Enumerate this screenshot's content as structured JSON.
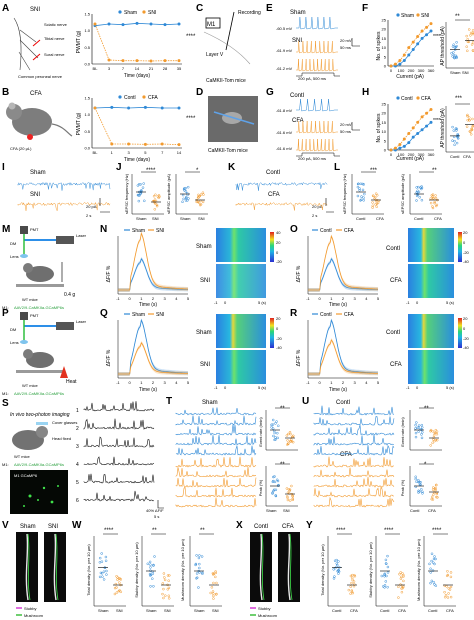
{
  "colors": {
    "sham": "#2f89d6",
    "injured": "#f29a2e",
    "heat_low": "#2b2fd0",
    "heat_mid": "#2ad67a",
    "heat_high": "#e01f1f"
  },
  "icons": [
    "neuron-schematic",
    "mouse-icon",
    "laser-icon",
    "pmt-icon",
    "lens-icon",
    "heat-icon",
    "cover-glass-icon",
    "head-fixed-icon"
  ],
  "panels": {
    "A": {
      "letter": "A",
      "model": "SNI",
      "tibial": "Tibial nerve",
      "common_peroneal": "Common peroneal nerve",
      "sural": "Sural nerve",
      "sciatic": "Sciatic nerve",
      "axis_y": "PWMT (g)",
      "axis_x": "Time (days)",
      "ticks_x": [
        "BL",
        "3",
        "7",
        "14",
        "21",
        "28",
        "35"
      ],
      "ticks_y": [
        "0.0",
        "0.5",
        "1.0",
        "1.5"
      ],
      "legend": [
        "Sham",
        "SNI"
      ],
      "sig": "****"
    },
    "B": {
      "letter": "B",
      "label": "CFA",
      "dose": "CFA (20 μL)",
      "axis_y": "PWMT (g)",
      "axis_x": "Time (days)",
      "ticks_x": [
        "BL",
        "1",
        "3",
        "5",
        "7",
        "14"
      ],
      "ticks_y": [
        "0.0",
        "0.5",
        "1.0",
        "1.5"
      ],
      "legend": [
        "Contl",
        "CFA"
      ],
      "sig": "****"
    },
    "C": {
      "letter": "C",
      "region": "M1",
      "recording": "Recording",
      "layer": "Layer V",
      "mice": "CaMKII-Tom mice"
    },
    "D": {
      "letter": "D",
      "mice": "CaMKII-Tom mice"
    },
    "E": {
      "letter": "E",
      "sham": "Sham",
      "sni": "SNI",
      "v1": "-60.5 mV",
      "v2": "-61.9 mV",
      "v3": "-61.2 mV",
      "scale_mv": "20 mV",
      "scale_ms": "50 ms",
      "step": "200 pA, 500 ms"
    },
    "F": {
      "letter": "F",
      "axis_y": "No. of spikes",
      "axis_x": "Current (pA)",
      "ticks_x": [
        "0",
        "100",
        "200",
        "300",
        "360"
      ],
      "ticks_y": [
        "0",
        "5",
        "10",
        "15",
        "20",
        "25"
      ],
      "legend": [
        "Sham",
        "SNI"
      ],
      "sig": "****",
      "axis_y2": "AP threshold (pA)",
      "ticks_y2": [
        "0",
        "50",
        "100",
        "150",
        "200"
      ],
      "cats": [
        "Sham",
        "SNI"
      ],
      "sig2": "**"
    },
    "G": {
      "letter": "G",
      "contl": "Contl",
      "cfa": "CFA",
      "v1": "-61.8 mV",
      "v2": "-61.6 mV",
      "v3": "-61.6 mV",
      "scale_mv": "20 mV",
      "scale_ms": "50 ms",
      "step": "200 pA, 500 ms"
    },
    "H": {
      "letter": "H",
      "axis_y": "No. of spikes",
      "axis_x": "Current (pA)",
      "ticks_x": [
        "0",
        "100",
        "200",
        "300",
        "360"
      ],
      "ticks_y": [
        "0",
        "5",
        "10",
        "15",
        "20",
        "25"
      ],
      "legend": [
        "Contl",
        "CFA"
      ],
      "sig": "****",
      "axis_y2": "AP threshold (pA)",
      "ticks_y2": [
        "0",
        "50",
        "100",
        "150",
        "200"
      ],
      "cats": [
        "Contl",
        "CFA"
      ],
      "sig2": "***"
    },
    "I": {
      "letter": "I",
      "sham": "Sham",
      "sni": "SNI",
      "scale_pa": "20 pA",
      "scale_s": "2 s"
    },
    "J": {
      "letter": "J",
      "axis_y1": "sEPSC frequency (Hz)",
      "axis_y2": "sEPSC amplitude (pA)",
      "cats": [
        "Sham",
        "SNI"
      ],
      "sig1": "****",
      "sig2": "*",
      "ticks_y1": [
        "0",
        "2",
        "4",
        "6"
      ],
      "ticks_y2": [
        "0",
        "10",
        "20",
        "30"
      ]
    },
    "K": {
      "letter": "K",
      "contl": "Contl",
      "cfa": "CFA",
      "scale_pa": "20 pA",
      "scale_s": "2 s"
    },
    "L": {
      "letter": "L",
      "axis_y1": "sEPSC frequency (Hz)",
      "axis_y2": "sEPSC amplitude (pA)",
      "cats": [
        "Contl",
        "CFA"
      ],
      "sig1": "***",
      "sig2": "**",
      "ticks_y1": [
        "0",
        "2",
        "4",
        "6"
      ],
      "ticks_y2": [
        "0",
        "10",
        "20",
        "30"
      ]
    },
    "M": {
      "letter": "M",
      "pmt": "PMT",
      "laser": "Laser",
      "dm": "DM",
      "lens": "Lens",
      "force": "0.4 g",
      "mice": "WT mice",
      "virus_prefix": "M1:",
      "virus": "AAV2/9-CaMKIIa-GCaMP6s"
    },
    "N": {
      "letter": "N",
      "legend": [
        "Sham",
        "SNI"
      ],
      "axis_y": "ΔF/F %",
      "axis_x": "Time (s)",
      "ticks_x": [
        "-1",
        "0",
        "1",
        "2",
        "3",
        "4",
        "5"
      ],
      "ticks_y": [
        "0",
        "1",
        "2",
        "3",
        "4",
        "5"
      ],
      "row1": "Sham",
      "row2": "SNI",
      "hx": [
        "-1",
        "0",
        "5 (s)"
      ],
      "cbar": [
        "40",
        "20",
        "0",
        "-20"
      ]
    },
    "O": {
      "letter": "O",
      "legend": [
        "Contl",
        "CFA"
      ],
      "axis_y": "ΔF/F %",
      "axis_x": "Time (s)",
      "ticks_x": [
        "-1",
        "0",
        "1",
        "2",
        "3",
        "4",
        "5"
      ],
      "ticks_y": [
        "0",
        "1",
        "2",
        "3",
        "4",
        "5"
      ],
      "row1": "Contl",
      "row2": "CFA",
      "hx": [
        "-1",
        "0",
        "5 (s)"
      ],
      "cbar": [
        "20",
        "0",
        "-20",
        "-40"
      ]
    },
    "P": {
      "letter": "P",
      "pmt": "PMT",
      "laser": "Laser",
      "dm": "DM",
      "lens": "Lens",
      "heat": "Heat",
      "mice": "WT mice",
      "virus_prefix": "M1:",
      "virus": "AAV2/9-CaMKIIa-GCaMP6s"
    },
    "Q": {
      "letter": "Q",
      "legend": [
        "Sham",
        "SNI"
      ],
      "axis_y": "ΔF/F %",
      "axis_x": "Time (s)",
      "ticks_x": [
        "-1",
        "0",
        "1",
        "2",
        "3",
        "4",
        "5"
      ],
      "ticks_y": [
        "0",
        "1",
        "2",
        "3",
        "4",
        "5"
      ],
      "row1": "Sham",
      "row2": "SNI",
      "hx": [
        "-1",
        "0",
        "5 (s)"
      ],
      "cbar": [
        "20",
        "0",
        "-20",
        "-40"
      ]
    },
    "R": {
      "letter": "R",
      "legend": [
        "Contl",
        "CFA"
      ],
      "axis_y": "ΔF/F %",
      "axis_x": "Time (s)",
      "ticks_x": [
        "-1",
        "0",
        "1",
        "2",
        "3",
        "4",
        "5"
      ],
      "ticks_y": [
        "0",
        "1",
        "2",
        "3",
        "4",
        "5"
      ],
      "row1": "Contl",
      "row2": "CFA",
      "hx": [
        "-1",
        "0",
        "5 (s)"
      ],
      "cbar": [
        "20",
        "0",
        "-20",
        "-40"
      ]
    },
    "S": {
      "letter": "S",
      "title": "In vivo two-photon imaging",
      "cover": "Cover glasses",
      "head": "Head fixed",
      "mice": "WT mice",
      "virus_prefix": "M1:",
      "virus": "AAV2/9-CaMKIIa-GCaMP6s",
      "img_label": "M1 GCaMP6",
      "cells": [
        "1",
        "2",
        "3",
        "4",
        "5",
        "6"
      ],
      "scale_df": "40% ΔF/F",
      "scale_s": "5 s"
    },
    "T": {
      "letter": "T",
      "title": "Sham",
      "axis_y1": "Event rate (/min)",
      "axis_y2": "Peak (%)",
      "cats": [
        "Sham",
        "SNI"
      ],
      "sig1": "**",
      "sig2": "**",
      "scale_df": "40% ΔF/F",
      "scale_s": "5 s"
    },
    "U": {
      "letter": "U",
      "title": "Contl",
      "title2": "CFA",
      "axis_y1": "Event rate (/min)",
      "axis_y2": "Peak (%)",
      "cats": [
        "Contl",
        "CFA"
      ],
      "sig1": "**",
      "sig2": "*",
      "scale_df": "40% ΔF/F",
      "scale_s": "5 s"
    },
    "V": {
      "letter": "V",
      "sham": "Sham",
      "sni": "SNI",
      "stubby": "Stubby",
      "mushroom": "Mushroom"
    },
    "W": {
      "letter": "W",
      "axis_y1": "Total density (No. per 10 μm)",
      "axis_y2": "Stubby density (No. per 10 μm)",
      "axis_y3": "Mushroom density (No. per 10 μm)",
      "cats": [
        "Sham",
        "SNI"
      ],
      "sig1": "****",
      "sig2": "**",
      "sig3": "**"
    },
    "X": {
      "letter": "X",
      "contl": "Contl",
      "cfa": "CFA",
      "stubby": "Stubby",
      "mushroom": "Mushroom"
    },
    "Y": {
      "letter": "Y",
      "axis_y1": "Total density (No. per 10 μm)",
      "axis_y2": "Stubby density (No. per 10 μm)",
      "axis_y3": "Mushroom density (No. per 10 μm)",
      "cats": [
        "Contl",
        "CFA"
      ],
      "sig1": "****",
      "sig2": "****",
      "sig3": "****"
    }
  },
  "chart_data": [
    {
      "id": "A",
      "type": "line",
      "x": [
        "BL",
        "3",
        "7",
        "14",
        "21",
        "28",
        "35"
      ],
      "series": [
        {
          "name": "Sham",
          "values": [
            1.15,
            1.2,
            1.18,
            1.22,
            1.2,
            1.18,
            1.2
          ]
        },
        {
          "name": "SNI",
          "values": [
            1.2,
            0.12,
            0.1,
            0.1,
            0.09,
            0.1,
            0.1
          ]
        }
      ],
      "ylim": [
        0,
        1.5
      ]
    },
    {
      "id": "B",
      "type": "line",
      "x": [
        "BL",
        "1",
        "3",
        "5",
        "7",
        "14"
      ],
      "series": [
        {
          "name": "Contl",
          "values": [
            1.2,
            1.22,
            1.2,
            1.22,
            1.2,
            1.2
          ]
        },
        {
          "name": "CFA",
          "values": [
            1.2,
            0.12,
            0.12,
            0.11,
            0.12,
            0.1
          ]
        }
      ],
      "ylim": [
        0,
        1.5
      ]
    },
    {
      "id": "F",
      "type": "line",
      "x": [
        0,
        40,
        80,
        120,
        160,
        200,
        240,
        280,
        320,
        360
      ],
      "series": [
        {
          "name": "Sham",
          "values": [
            0,
            0,
            1,
            3,
            6,
            9,
            12,
            15,
            17,
            19
          ]
        },
        {
          "name": "SNI",
          "values": [
            0,
            1,
            3,
            6,
            10,
            13,
            16,
            19,
            21,
            23
          ]
        }
      ],
      "ylim": [
        0,
        25
      ]
    },
    {
      "id": "H",
      "type": "line",
      "x": [
        0,
        40,
        80,
        120,
        160,
        200,
        240,
        280,
        320,
        360
      ],
      "series": [
        {
          "name": "Contl",
          "values": [
            0,
            0,
            1,
            2,
            4,
            7,
            9,
            11,
            13,
            15
          ]
        },
        {
          "name": "CFA",
          "values": [
            0,
            1,
            3,
            6,
            9,
            12,
            15,
            18,
            20,
            22
          ]
        }
      ],
      "ylim": [
        0,
        25
      ]
    }
  ]
}
